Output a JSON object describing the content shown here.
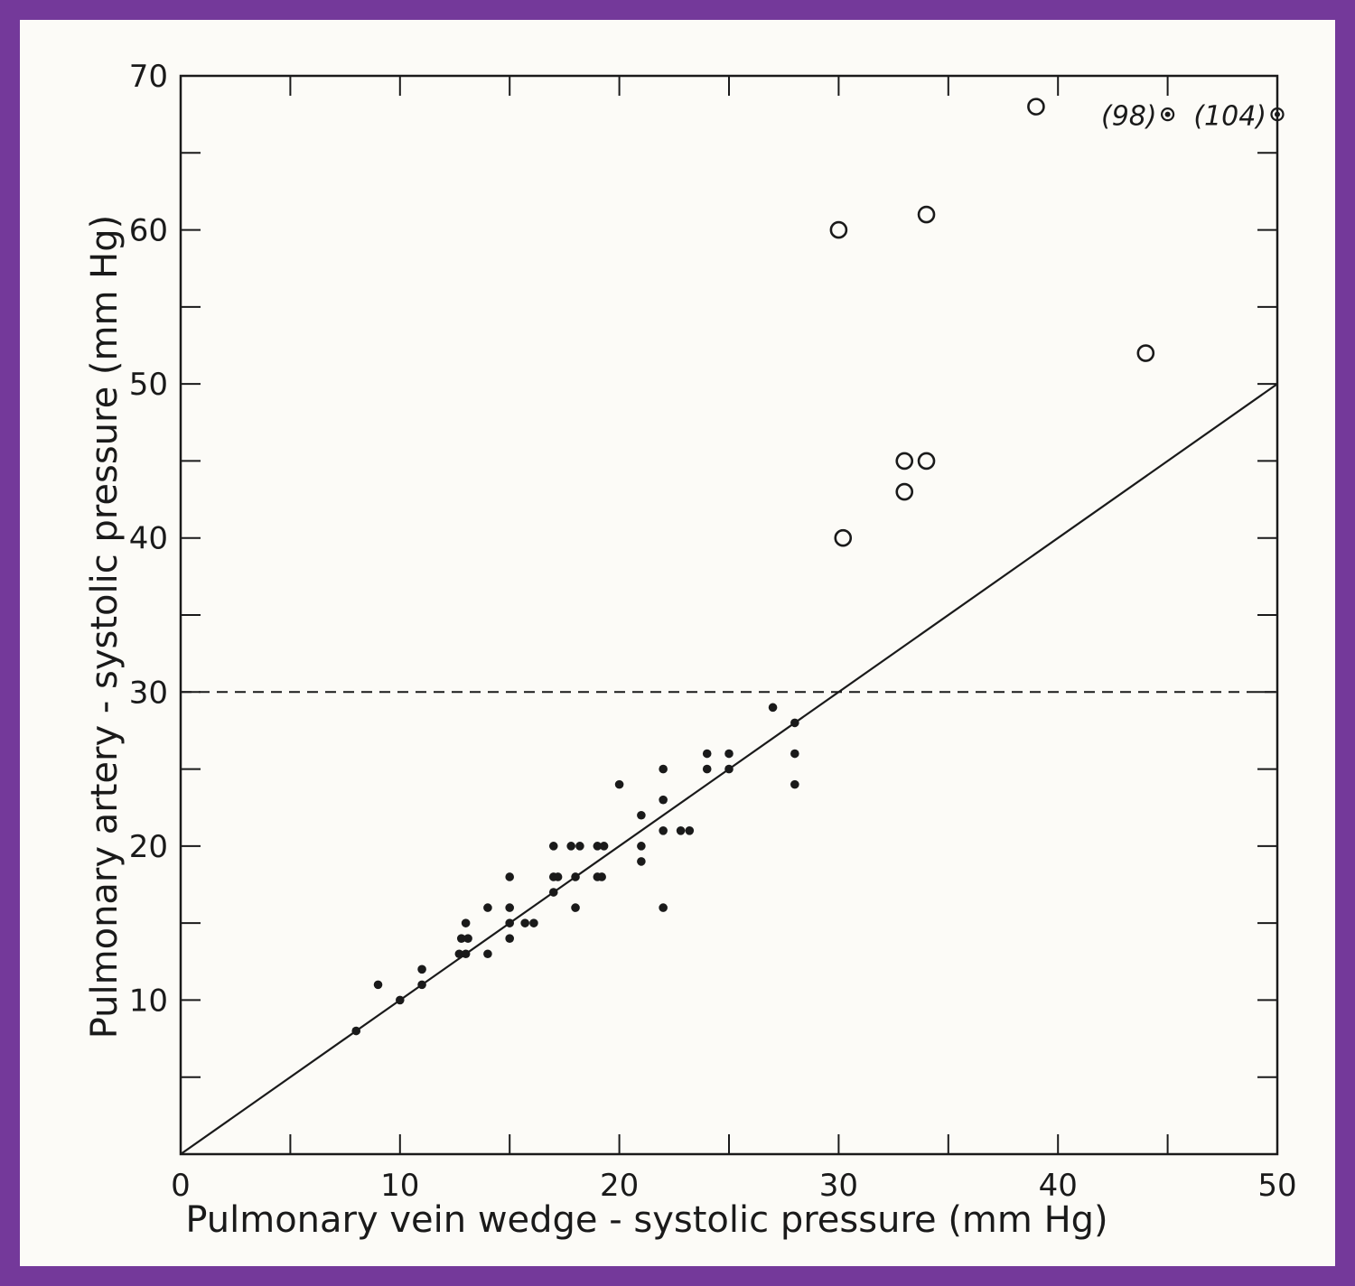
{
  "chart_data": {
    "type": "scatter",
    "title": "",
    "xlabel": "Pulmonary vein wedge - systolic pressure (mm Hg)",
    "ylabel": "Pulmonary artery - systolic pressure (mm Hg)",
    "xlim": [
      0,
      50
    ],
    "ylim": [
      0,
      70
    ],
    "x_major_ticks": [
      0,
      10,
      20,
      30,
      40,
      50
    ],
    "x_tick_labels": [
      "0",
      "10",
      "20",
      "30",
      "40",
      "50"
    ],
    "y_major_ticks": [
      10,
      20,
      30,
      40,
      50,
      60,
      70
    ],
    "y_tick_labels": [
      "10",
      "20",
      "30",
      "40",
      "50",
      "60",
      "70"
    ],
    "minor_tick_step": 5,
    "grid": false,
    "reference_lines": [
      {
        "kind": "dashed-horizontal",
        "y": 30
      },
      {
        "kind": "solid",
        "x": [
          0,
          50
        ],
        "y": [
          0,
          50
        ]
      }
    ],
    "series": [
      {
        "marker": "filled-dot",
        "points": [
          [
            8,
            8
          ],
          [
            9,
            11
          ],
          [
            10,
            10
          ],
          [
            11,
            11
          ],
          [
            11,
            12
          ],
          [
            12.7,
            13
          ],
          [
            13,
            13
          ],
          [
            12.8,
            14
          ],
          [
            13.1,
            14
          ],
          [
            13,
            15
          ],
          [
            14,
            13
          ],
          [
            14,
            16
          ],
          [
            15,
            14
          ],
          [
            15,
            15
          ],
          [
            15,
            16
          ],
          [
            15,
            18
          ],
          [
            15.7,
            15
          ],
          [
            16.1,
            15
          ],
          [
            17,
            17
          ],
          [
            17,
            18
          ],
          [
            17.2,
            18
          ],
          [
            17,
            20
          ],
          [
            18,
            16
          ],
          [
            18,
            18
          ],
          [
            17.8,
            20
          ],
          [
            18.2,
            20
          ],
          [
            19,
            18
          ],
          [
            19.2,
            18
          ],
          [
            19,
            20
          ],
          [
            19.3,
            20
          ],
          [
            20,
            24
          ],
          [
            21,
            19
          ],
          [
            21,
            20
          ],
          [
            21,
            22
          ],
          [
            22,
            16
          ],
          [
            22,
            21
          ],
          [
            22,
            23
          ],
          [
            22,
            25
          ],
          [
            22.8,
            21
          ],
          [
            23.2,
            21
          ],
          [
            24,
            25
          ],
          [
            24,
            26
          ],
          [
            25,
            25
          ],
          [
            25,
            26
          ],
          [
            27,
            29
          ],
          [
            28,
            24
          ],
          [
            28,
            26
          ],
          [
            28,
            28
          ]
        ]
      },
      {
        "marker": "open-circle",
        "points": [
          [
            30,
            60
          ],
          [
            30.2,
            40
          ],
          [
            33,
            43
          ],
          [
            33,
            45
          ],
          [
            34,
            45
          ],
          [
            34,
            61
          ],
          [
            39,
            68
          ],
          [
            44,
            52
          ]
        ]
      },
      {
        "marker": "circled-dot",
        "points": [
          [
            45,
            67.5
          ],
          [
            50,
            67.5
          ]
        ],
        "labels": [
          "(98)",
          "(104)"
        ]
      }
    ]
  }
}
